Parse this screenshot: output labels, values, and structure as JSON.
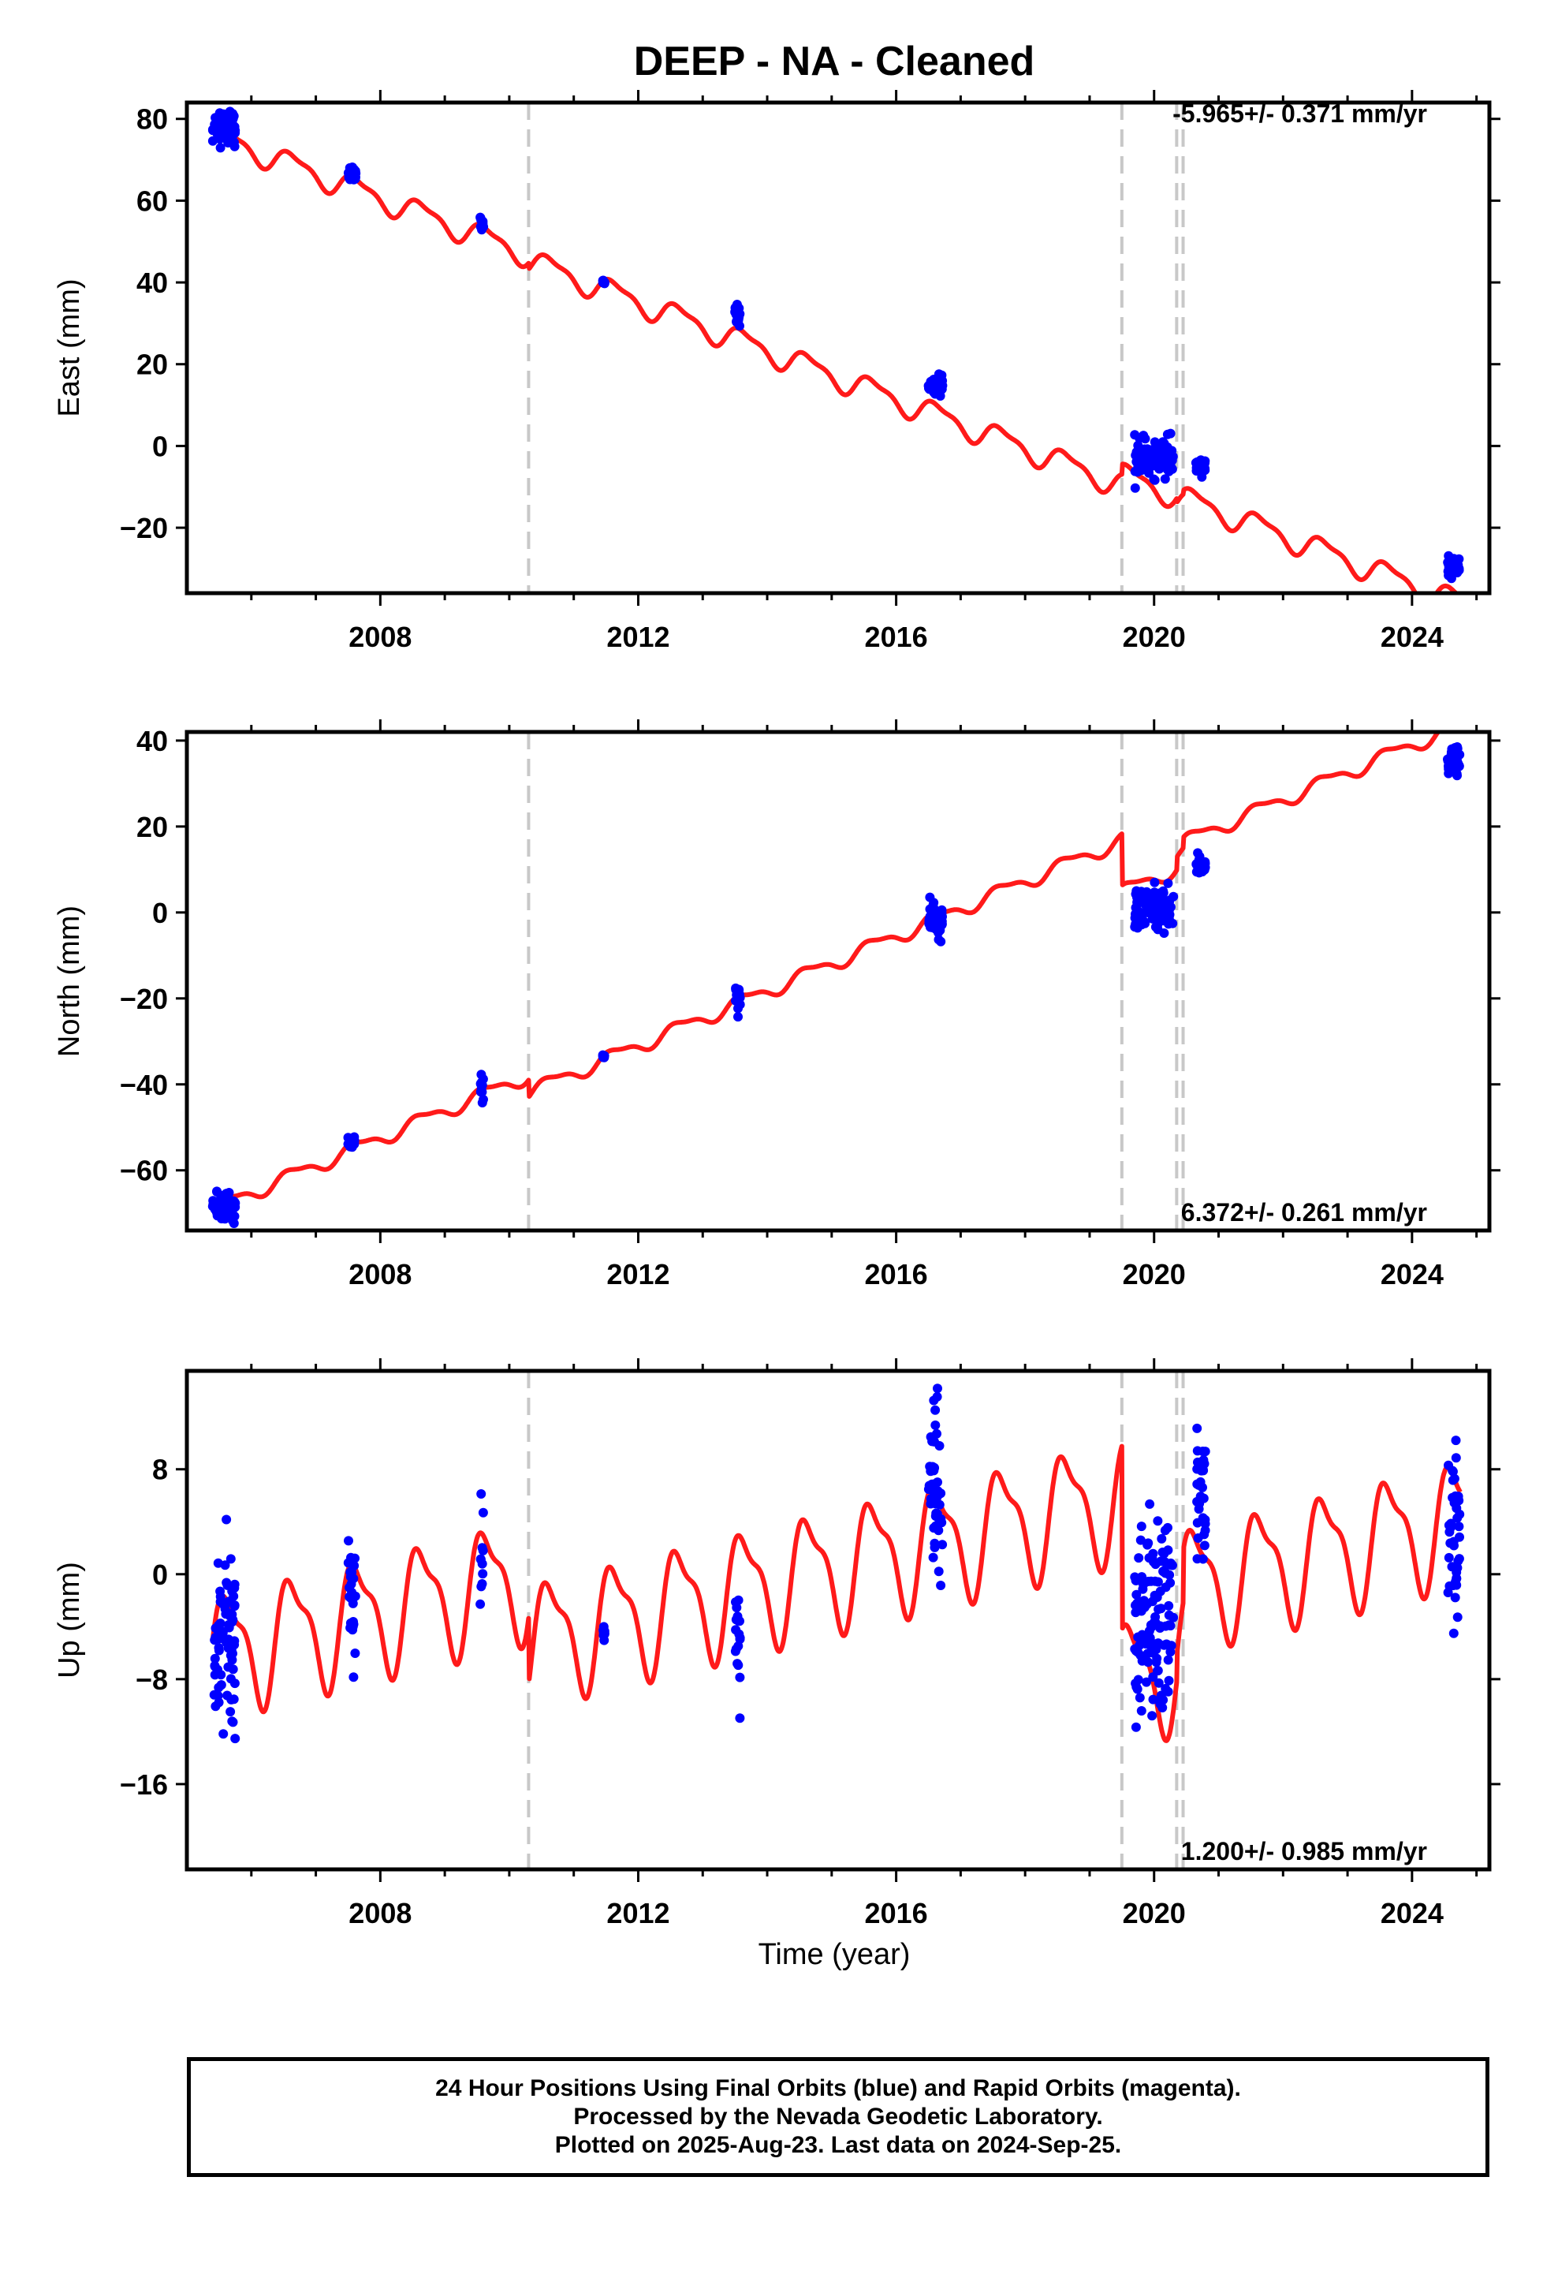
{
  "title": "DEEP  - NA - Cleaned",
  "xlabel": "Time (year)",
  "x_ticks": [
    "2008",
    "2012",
    "2016",
    "2020",
    "2024"
  ],
  "colors": {
    "model": "#ff1a1a",
    "data": "#0000ff",
    "event_line": "#c8c8c8",
    "frame": "#000000"
  },
  "footer": {
    "line1": "24 Hour Positions Using Final Orbits (blue) and Rapid Orbits (magenta).",
    "line2": "Processed by the Nevada Geodetic Laboratory.",
    "line3": "Plotted on 2025-Aug-23. Last data on 2024-Sep-25."
  },
  "chart_data": [
    {
      "type": "scatter",
      "component": "east",
      "ylabel": "East (mm)",
      "rate_label": "-5.965+/- 0.371 mm/yr",
      "xlim": [
        2005.0,
        2025.2
      ],
      "ylim": [
        -36,
        84
      ],
      "y_ticks": [
        "80",
        "60",
        "40",
        "20",
        "0",
        "−20"
      ],
      "event_lines": [
        2010.3,
        2019.5,
        2020.35,
        2020.45
      ],
      "model": {
        "name": "model",
        "start": 2005.4,
        "start_value": 76.1,
        "rate": -5.965,
        "annual_amplitude": 2.8,
        "offsets": [
          {
            "t": 2010.3,
            "dy": -1.5
          },
          {
            "t": 2019.5,
            "dy": 2.5
          },
          {
            "t": 2020.35,
            "dy": -1.0
          },
          {
            "t": 2020.45,
            "dy": 1.0
          }
        ]
      },
      "observations": [
        {
          "t_start": 2005.4,
          "t_end": 2005.75,
          "y_center": 78,
          "spread": 3.5
        },
        {
          "t_start": 2007.5,
          "t_end": 2007.62,
          "y_center": 66.5,
          "spread": 1.5
        },
        {
          "t_start": 2009.55,
          "t_end": 2009.6,
          "y_center": 54,
          "spread": 1.5
        },
        {
          "t_start": 2011.45,
          "t_end": 2011.48,
          "y_center": 40,
          "spread": 0.5
        },
        {
          "t_start": 2013.5,
          "t_end": 2013.58,
          "y_center": 32,
          "spread": 2
        },
        {
          "t_start": 2016.5,
          "t_end": 2016.72,
          "y_center": 15,
          "spread": 2
        },
        {
          "t_start": 2019.7,
          "t_end": 2020.3,
          "y_center": -3,
          "spread": 3.5
        },
        {
          "t_start": 2020.65,
          "t_end": 2020.8,
          "y_center": -5,
          "spread": 1.5
        },
        {
          "t_start": 2024.55,
          "t_end": 2024.74,
          "y_center": -29.5,
          "spread": 2
        }
      ]
    },
    {
      "type": "scatter",
      "component": "north",
      "ylabel": "North (mm)",
      "rate_label": "6.372+/- 0.261 mm/yr",
      "xlim": [
        2005.0,
        2025.2
      ],
      "ylim": [
        -74,
        42
      ],
      "y_ticks": [
        "40",
        "20",
        "0",
        "−20",
        "−40",
        "−60"
      ],
      "event_lines": [
        2010.3,
        2019.5,
        2020.35,
        2020.45
      ],
      "model": {
        "name": "model",
        "start": 2005.4,
        "start_value": -69.0,
        "rate": 6.372,
        "annual_amplitude": 1.6,
        "offsets": [
          {
            "t": 2010.3,
            "dy": -4.0
          },
          {
            "t": 2019.5,
            "dy": -12.0
          },
          {
            "t": 2020.35,
            "dy": 3.0
          },
          {
            "t": 2020.45,
            "dy": 2.5
          }
        ]
      },
      "observations": [
        {
          "t_start": 2005.4,
          "t_end": 2005.75,
          "y_center": -68.5,
          "spread": 2.5
        },
        {
          "t_start": 2007.5,
          "t_end": 2007.62,
          "y_center": -53.5,
          "spread": 1.5
        },
        {
          "t_start": 2009.55,
          "t_end": 2009.6,
          "y_center": -41.5,
          "spread": 3
        },
        {
          "t_start": 2011.45,
          "t_end": 2011.48,
          "y_center": -33.5,
          "spread": 0.5
        },
        {
          "t_start": 2013.5,
          "t_end": 2013.58,
          "y_center": -20,
          "spread": 2.5
        },
        {
          "t_start": 2016.5,
          "t_end": 2016.72,
          "y_center": -2,
          "spread": 3
        },
        {
          "t_start": 2019.7,
          "t_end": 2020.3,
          "y_center": 1,
          "spread": 4
        },
        {
          "t_start": 2020.65,
          "t_end": 2020.8,
          "y_center": 11,
          "spread": 1.5
        },
        {
          "t_start": 2024.55,
          "t_end": 2024.74,
          "y_center": 35,
          "spread": 2.5
        }
      ]
    },
    {
      "type": "scatter",
      "component": "up",
      "ylabel": "Up (mm)",
      "rate_label": "1.200+/- 0.985 mm/yr",
      "xlim": [
        2005.0,
        2025.2
      ],
      "ylim": [
        -22.5,
        15.5
      ],
      "y_ticks": [
        "8",
        "0",
        "−8",
        "−16"
      ],
      "event_lines": [
        2010.3,
        2019.5,
        2020.35,
        2020.45
      ],
      "model": {
        "name": "model",
        "start": 2005.4,
        "start_value": -6.0,
        "rate": 1.2,
        "annual_amplitude": 4.2,
        "offsets": [
          {
            "t": 2010.3,
            "dy": -5.0
          },
          {
            "t": 2019.5,
            "dy": -14.0
          },
          {
            "t": 2020.35,
            "dy": 2.0
          },
          {
            "t": 2020.45,
            "dy": 4.0
          }
        ]
      },
      "observations": [
        {
          "t_start": 2005.4,
          "t_end": 2005.75,
          "y_center": -5,
          "spread": 6
        },
        {
          "t_start": 2007.5,
          "t_end": 2007.62,
          "y_center": -1,
          "spread": 4
        },
        {
          "t_start": 2009.55,
          "t_end": 2009.6,
          "y_center": 0.5,
          "spread": 5
        },
        {
          "t_start": 2011.45,
          "t_end": 2011.48,
          "y_center": -4.5,
          "spread": 0.5
        },
        {
          "t_start": 2013.5,
          "t_end": 2013.58,
          "y_center": -5,
          "spread": 5
        },
        {
          "t_start": 2016.5,
          "t_end": 2016.72,
          "y_center": 7,
          "spread": 5
        },
        {
          "t_start": 2019.7,
          "t_end": 2020.3,
          "y_center": -4,
          "spread": 7
        },
        {
          "t_start": 2020.65,
          "t_end": 2020.8,
          "y_center": 6,
          "spread": 4
        },
        {
          "t_start": 2024.55,
          "t_end": 2024.74,
          "y_center": 2,
          "spread": 6
        }
      ]
    }
  ]
}
